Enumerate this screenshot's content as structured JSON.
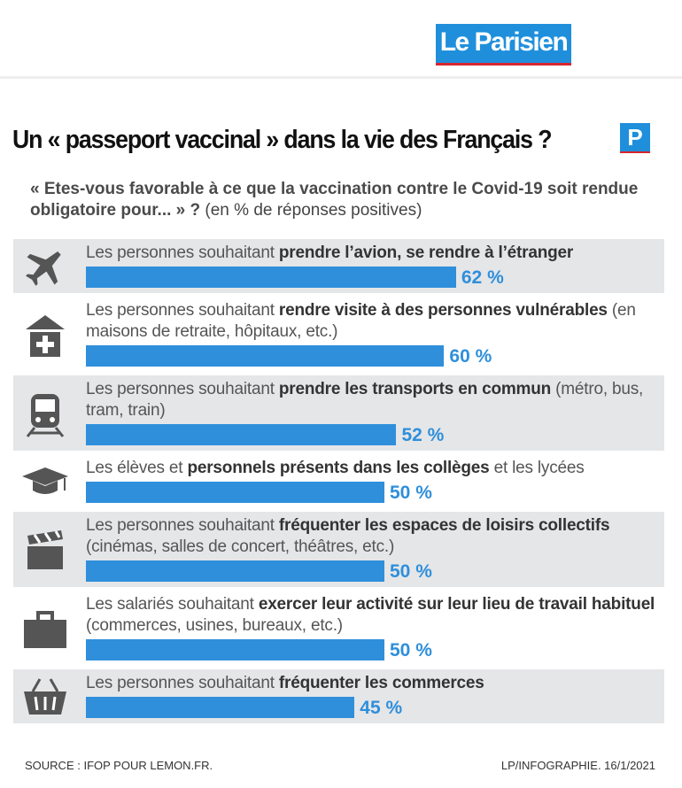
{
  "header": {
    "logo": "Le Parisien"
  },
  "badge": "P",
  "chart_data": {
    "type": "bar",
    "orientation": "horizontal",
    "title": "Un « passeport vaccinal » dans la vie des Français ?",
    "subtitle": "« Etes-vous favorable à ce que la vaccination contre le Covid-19 soit rendue obligatoire pour... » ?",
    "subtitle_note": "(en % de réponses positives)",
    "color": "#2f8fdb",
    "categories": [
      [
        {
          "text": "Les personnes souhaitant ",
          "bold": false
        },
        {
          "text": "prendre l’avion, se rendre à l’étranger",
          "bold": true
        }
      ],
      [
        {
          "text": "Les personnes souhaitant ",
          "bold": false
        },
        {
          "text": "rendre visite à des personnes vulnérables",
          "bold": true
        },
        {
          "text": " (en maisons de retraite, hôpitaux, etc.)",
          "bold": false
        }
      ],
      [
        {
          "text": "Les personnes souhaitant ",
          "bold": false
        },
        {
          "text": "prendre les transports en commun",
          "bold": true
        },
        {
          "text": " (métro, bus, tram, train)",
          "bold": false
        }
      ],
      [
        {
          "text": "Les élèves et ",
          "bold": false
        },
        {
          "text": "personnels présents dans les collèges",
          "bold": true
        },
        {
          "text": " et les lycées",
          "bold": false
        }
      ],
      [
        {
          "text": "Les personnes souhaitant ",
          "bold": false
        },
        {
          "text": "fréquenter les espaces de loisirs collectifs",
          "bold": true
        },
        {
          "text": " (cinémas, salles de concert, théâtres, etc.)",
          "bold": false
        }
      ],
      [
        {
          "text": "Les salariés souhaitant ",
          "bold": false
        },
        {
          "text": "exercer leur activité sur leur lieu de travail habituel",
          "bold": true
        },
        {
          "text": " (commerces, usines, bureaux, etc.)",
          "bold": false
        }
      ],
      [
        {
          "text": "Les personnes souhaitant ",
          "bold": false
        },
        {
          "text": "fréquenter les commerces",
          "bold": true
        }
      ]
    ],
    "values": [
      62,
      60,
      52,
      50,
      50,
      50,
      45
    ],
    "value_labels": [
      "62 %",
      "60 %",
      "52 %",
      "50 %",
      "50 %",
      "50 %",
      "45 %"
    ],
    "source": "SOURCE : IFOP POUR LEMON.FR.",
    "credit": "LP/INFOGRAPHIE. 16/1/2021"
  }
}
